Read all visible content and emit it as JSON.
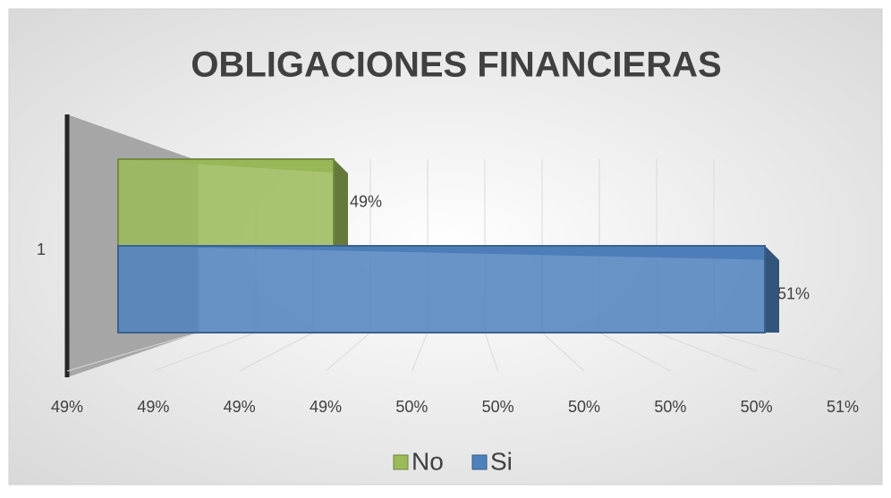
{
  "chart_data": {
    "type": "bar3d",
    "title": "OBLIGACIONES FINANCIERAS",
    "categories": [
      "1"
    ],
    "series": [
      {
        "name": "No",
        "color": "#9bbb59",
        "values": [
          49.4
        ],
        "value_labels": [
          "49%"
        ]
      },
      {
        "name": "Si",
        "color": "#4f81bd",
        "values": [
          50.6
        ],
        "value_labels": [
          "51%"
        ]
      }
    ],
    "xlim": [
      48.8,
      50.6
    ],
    "xticks": [
      {
        "value": 48.8,
        "label": "49%"
      },
      {
        "value": 49.0,
        "label": "49%"
      },
      {
        "value": 49.2,
        "label": "49%"
      },
      {
        "value": 49.4,
        "label": "49%"
      },
      {
        "value": 49.6,
        "label": "50%"
      },
      {
        "value": 49.8,
        "label": "50%"
      },
      {
        "value": 50.0,
        "label": "50%"
      },
      {
        "value": 50.2,
        "label": "50%"
      },
      {
        "value": 50.4,
        "label": "50%"
      },
      {
        "value": 50.6,
        "label": "51%"
      }
    ],
    "grid": true,
    "legend": "bottom"
  }
}
